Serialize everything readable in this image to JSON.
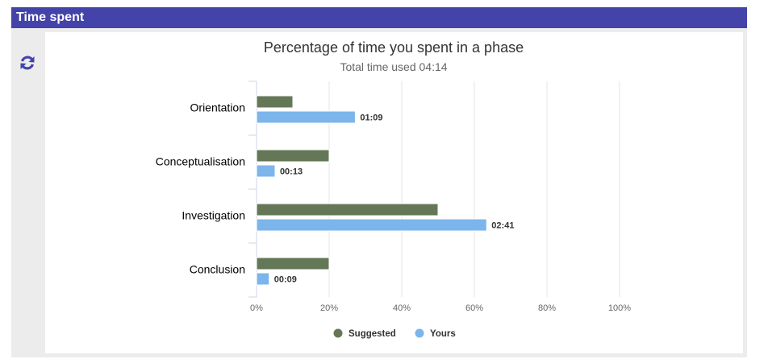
{
  "panel": {
    "title": "Time spent",
    "refresh_icon": "refresh-icon"
  },
  "colors": {
    "header": "#4343a9",
    "suggested": "#647858",
    "yours": "#7cb5ec"
  },
  "chart_data": {
    "type": "bar",
    "orientation": "horizontal",
    "title": "Percentage of time you spent in a phase",
    "subtitle": "Total time used 04:14",
    "categories": [
      "Orientation",
      "Conceptualisation",
      "Investigation",
      "Conclusion"
    ],
    "series": [
      {
        "name": "Suggested",
        "values": [
          10,
          20,
          50,
          20
        ],
        "color": "#647858"
      },
      {
        "name": "Yours",
        "values": [
          27.2,
          5.1,
          63.4,
          3.5
        ],
        "labels": [
          "01:09",
          "00:13",
          "02:41",
          "00:09"
        ],
        "color": "#7cb5ec"
      }
    ],
    "xlim": [
      0,
      100
    ],
    "xticks": [
      0,
      20,
      40,
      60,
      80,
      100
    ],
    "xtick_labels": [
      "0%",
      "20%",
      "40%",
      "60%",
      "80%",
      "100%"
    ],
    "grid": true,
    "legend": "bottom-center"
  }
}
